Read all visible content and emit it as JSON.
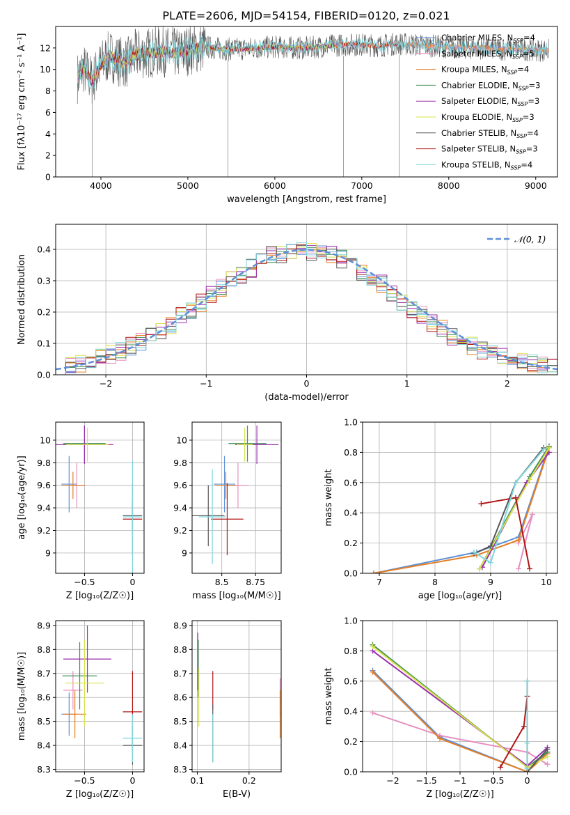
{
  "title": "PLATE=2606, MJD=54154, FIBERID=0120, z=0.021",
  "colors": {
    "chabrier_miles": "#5b8fd6",
    "salpeter_miles": "#e58fbf",
    "kroupa_miles": "#e67e22",
    "chabrier_elodie": "#3f8f55",
    "salpeter_elodie": "#9b2fae",
    "kroupa_elodie": "#d8e04a",
    "chabrier_stelib": "#555555",
    "salpeter_stelib": "#b01515",
    "kroupa_stelib": "#7fd6dd"
  },
  "legend_spectrum": [
    {
      "label": "Chabrier MILES, N",
      "sub": "SSP",
      "value": "=4",
      "color_key": "chabrier_miles"
    },
    {
      "label": "Salpeter MILES, N",
      "sub": "SSP",
      "value": "=5",
      "color_key": "salpeter_miles"
    },
    {
      "label": "Kroupa MILES, N",
      "sub": "SSP",
      "value": "=4",
      "color_key": "kroupa_miles"
    },
    {
      "label": "Chabrier ELODIE, N",
      "sub": "SSP",
      "value": "=3",
      "color_key": "chabrier_elodie"
    },
    {
      "label": "Salpeter ELODIE, N",
      "sub": "SSP",
      "value": "=3",
      "color_key": "salpeter_elodie"
    },
    {
      "label": "Kroupa ELODIE, N",
      "sub": "SSP",
      "value": "=3",
      "color_key": "kroupa_elodie"
    },
    {
      "label": "Chabrier STELIB, N",
      "sub": "SSP",
      "value": "=4",
      "color_key": "chabrier_stelib"
    },
    {
      "label": "Salpeter STELIB, N",
      "sub": "SSP",
      "value": "=3",
      "color_key": "salpeter_stelib"
    },
    {
      "label": "Kroupa STELIB, N",
      "sub": "SSP",
      "value": "=4",
      "color_key": "kroupa_stelib"
    }
  ],
  "chart_data": [
    {
      "id": "spectrum",
      "type": "line",
      "xlabel": "wavelength [Angstrom, rest frame]",
      "ylabel": "Flux [fλ10⁻¹⁷ erg cm⁻² s⁻¹ A⁻¹]",
      "xlim": [
        3480,
        9250
      ],
      "ylim": [
        0,
        14
      ],
      "xticks": [
        4000,
        5000,
        6000,
        7000,
        8000,
        9000
      ],
      "yticks": [
        0,
        2,
        4,
        6,
        8,
        10,
        12
      ],
      "grid": false,
      "legend_position": "top-right",
      "data_points": [
        [
          3730,
          9.2
        ],
        [
          3800,
          10.1
        ],
        [
          3900,
          8.9
        ],
        [
          4000,
          10.4
        ],
        [
          4100,
          11.3
        ],
        [
          4200,
          10.8
        ],
        [
          4300,
          10.6
        ],
        [
          4400,
          11.4
        ],
        [
          4500,
          11.5
        ],
        [
          4600,
          11.6
        ],
        [
          4700,
          11.7
        ],
        [
          4800,
          11.6
        ],
        [
          4900,
          11.5
        ],
        [
          5000,
          11.8
        ],
        [
          5200,
          12.1
        ],
        [
          5400,
          11.9
        ],
        [
          5600,
          11.9
        ],
        [
          5800,
          12.0
        ],
        [
          6000,
          12.1
        ],
        [
          6200,
          12.0
        ],
        [
          6400,
          12.0
        ],
        [
          6600,
          12.2
        ],
        [
          6800,
          12.3
        ],
        [
          7000,
          12.3
        ],
        [
          7200,
          12.2
        ],
        [
          7400,
          12.4
        ],
        [
          7600,
          12.3
        ],
        [
          7800,
          12.2
        ],
        [
          8000,
          12.1
        ],
        [
          8200,
          12.0
        ],
        [
          8400,
          12.0
        ],
        [
          8600,
          11.9
        ],
        [
          8800,
          11.9
        ],
        [
          9000,
          11.8
        ],
        [
          9150,
          11.8
        ]
      ],
      "absorption_drops": [
        [
          3900,
          0
        ],
        [
          5460,
          0
        ],
        [
          6790,
          0
        ],
        [
          7430,
          0
        ]
      ]
    },
    {
      "id": "residuals",
      "type": "line",
      "xlabel": "(data-model)/error",
      "ylabel": "Normed distribution",
      "xlim": [
        -2.5,
        2.5
      ],
      "ylim": [
        0,
        0.48
      ],
      "xticks": [
        -2,
        -1,
        0,
        1,
        2
      ],
      "yticks": [
        0.0,
        0.1,
        0.2,
        0.3,
        0.4
      ],
      "grid": true,
      "legend_position": "top-right",
      "legend": [
        {
          "label": "𝒩(0, 1)",
          "color_key": "chabrier_miles"
        }
      ],
      "bin_edges": [
        -2.5,
        -2.4,
        -2.3,
        -2.2,
        -2.1,
        -2.0,
        -1.9,
        -1.8,
        -1.7,
        -1.6,
        -1.5,
        -1.4,
        -1.3,
        -1.2,
        -1.1,
        -1.0,
        -0.9,
        -0.8,
        -0.7,
        -0.6,
        -0.5,
        -0.4,
        -0.3,
        -0.2,
        -0.1,
        0.0,
        0.1,
        0.2,
        0.3,
        0.4,
        0.5,
        0.6,
        0.7,
        0.8,
        0.9,
        1.0,
        1.1,
        1.2,
        1.3,
        1.4,
        1.5,
        1.6,
        1.7,
        1.8,
        1.9,
        2.0,
        2.1,
        2.2,
        2.3,
        2.4,
        2.5
      ],
      "hist_base": [
        0.025,
        0.032,
        0.038,
        0.045,
        0.055,
        0.065,
        0.075,
        0.09,
        0.105,
        0.12,
        0.14,
        0.16,
        0.185,
        0.205,
        0.23,
        0.255,
        0.28,
        0.3,
        0.32,
        0.34,
        0.36,
        0.38,
        0.385,
        0.395,
        0.4,
        0.395,
        0.39,
        0.38,
        0.37,
        0.35,
        0.33,
        0.31,
        0.29,
        0.26,
        0.235,
        0.21,
        0.19,
        0.165,
        0.145,
        0.12,
        0.105,
        0.09,
        0.075,
        0.065,
        0.055,
        0.048,
        0.042,
        0.036,
        0.032,
        0.028
      ]
    },
    {
      "id": "age_vs_Z",
      "type": "scatter",
      "xlabel": "Z [log₁₀(Z/Z☉)]",
      "ylabel": "age  [log₁₀(age/yr)]",
      "xlim": [
        -0.8,
        0.12
      ],
      "ylim": [
        8.82,
        10.16
      ],
      "xticks": [
        -0.5,
        0.0
      ],
      "yticks": [
        9.0,
        9.2,
        9.4,
        9.6,
        9.8,
        10.0
      ],
      "grid": true,
      "points": [
        {
          "x": -0.66,
          "y": 9.61,
          "ex": 0.08,
          "ey": 0.25,
          "color_key": "chabrier_miles"
        },
        {
          "x": -0.58,
          "y": 9.6,
          "ex": 0.1,
          "ey": 0.2,
          "color_key": "salpeter_miles"
        },
        {
          "x": -0.62,
          "y": 9.6,
          "ex": 0.12,
          "ey": 0.12,
          "color_key": "kroupa_miles"
        },
        {
          "x": -0.5,
          "y": 9.97,
          "ex": 0.22,
          "ey": 0.16,
          "color_key": "chabrier_elodie"
        },
        {
          "x": -0.5,
          "y": 9.96,
          "ex": 0.3,
          "ey": 0.17,
          "color_key": "salpeter_elodie"
        },
        {
          "x": -0.47,
          "y": 9.96,
          "ex": 0.22,
          "ey": 0.15,
          "color_key": "kroupa_elodie"
        },
        {
          "x": 0.0,
          "y": 9.33,
          "ex": 0.1,
          "ey": 0.12,
          "color_key": "chabrier_stelib"
        },
        {
          "x": 0.0,
          "y": 9.3,
          "ex": 0.1,
          "ey": 0.32,
          "color_key": "salpeter_stelib"
        },
        {
          "x": 0.0,
          "y": 9.32,
          "ex": 0.1,
          "ey": 0.5,
          "color_key": "kroupa_stelib"
        }
      ]
    },
    {
      "id": "age_vs_mass",
      "type": "scatter",
      "xlabel": "mass [log₁₀(M/M☉)]",
      "ylabel": "",
      "xlim": [
        8.28,
        8.94
      ],
      "ylim": [
        8.82,
        10.16
      ],
      "xticks": [
        8.5,
        8.75
      ],
      "yticks": [
        9.0,
        9.2,
        9.4,
        9.6,
        9.8,
        10.0
      ],
      "grid": true,
      "points": [
        {
          "x": 8.52,
          "y": 9.61,
          "ex": 0.08,
          "ey": 0.25,
          "color_key": "chabrier_miles"
        },
        {
          "x": 8.62,
          "y": 9.6,
          "ex": 0.08,
          "ey": 0.2,
          "color_key": "salpeter_miles"
        },
        {
          "x": 8.53,
          "y": 9.6,
          "ex": 0.08,
          "ey": 0.12,
          "color_key": "kroupa_miles"
        },
        {
          "x": 8.69,
          "y": 9.97,
          "ex": 0.14,
          "ey": 0.16,
          "color_key": "chabrier_elodie"
        },
        {
          "x": 8.76,
          "y": 9.96,
          "ex": 0.16,
          "ey": 0.17,
          "color_key": "salpeter_elodie"
        },
        {
          "x": 8.67,
          "y": 9.96,
          "ex": 0.06,
          "ey": 0.15,
          "color_key": "kroupa_elodie"
        },
        {
          "x": 8.4,
          "y": 9.33,
          "ex": 0.12,
          "ey": 0.27,
          "color_key": "chabrier_stelib"
        },
        {
          "x": 8.54,
          "y": 9.3,
          "ex": 0.12,
          "ey": 0.32,
          "color_key": "salpeter_stelib"
        },
        {
          "x": 8.43,
          "y": 9.32,
          "ex": 0.1,
          "ey": 0.42,
          "color_key": "kroupa_stelib"
        }
      ]
    },
    {
      "id": "mass_weight_vs_age",
      "type": "line",
      "xlabel": "age  [log₁₀(age/yr)]",
      "ylabel": "mass weight",
      "xlim": [
        6.7,
        10.2
      ],
      "ylim": [
        0,
        1.0
      ],
      "xticks": [
        7,
        8,
        9,
        10
      ],
      "yticks": [
        0.0,
        0.2,
        0.4,
        0.6,
        0.8,
        1.0
      ],
      "grid": true,
      "series": [
        {
          "color_key": "chabrier_miles",
          "x": [
            6.9,
            8.75,
            9.5,
            10.05
          ],
          "y": [
            0.0,
            0.14,
            0.24,
            0.84
          ]
        },
        {
          "color_key": "salpeter_miles",
          "x": [
            9.5,
            9.75,
            9.5
          ],
          "y": [
            0.03,
            0.39,
            0.2
          ]
        },
        {
          "color_key": "kroupa_miles",
          "x": [
            6.9,
            8.75,
            9.5,
            10.05
          ],
          "y": [
            0.0,
            0.12,
            0.22,
            0.83
          ]
        },
        {
          "color_key": "chabrier_elodie",
          "x": [
            8.8,
            9.7,
            10.05
          ],
          "y": [
            0.03,
            0.64,
            0.84
          ]
        },
        {
          "color_key": "salpeter_elodie",
          "x": [
            8.85,
            9.65,
            10.05
          ],
          "y": [
            0.04,
            0.6,
            0.8
          ]
        },
        {
          "color_key": "kroupa_elodie",
          "x": [
            8.8,
            9.7,
            10.05
          ],
          "y": [
            0.03,
            0.62,
            0.83
          ]
        },
        {
          "color_key": "chabrier_stelib",
          "x": [
            8.7,
            9.0,
            9.45,
            9.95
          ],
          "y": [
            0.13,
            0.18,
            0.6,
            0.83
          ]
        },
        {
          "color_key": "salpeter_stelib",
          "x": [
            8.83,
            9.45,
            9.7
          ],
          "y": [
            0.46,
            0.5,
            0.03
          ]
        },
        {
          "color_key": "kroupa_stelib",
          "x": [
            8.7,
            9.0,
            9.45,
            9.95
          ],
          "y": [
            0.14,
            0.07,
            0.6,
            0.82
          ]
        }
      ]
    },
    {
      "id": "mass_vs_Z",
      "type": "scatter",
      "xlabel": "Z [log₁₀(Z/Z☉)]",
      "ylabel": "mass [log₁₀(M/M☉)]",
      "xlim": [
        -0.8,
        0.12
      ],
      "ylim": [
        8.29,
        8.92
      ],
      "xticks": [
        -0.5,
        0.0
      ],
      "yticks": [
        8.3,
        8.4,
        8.5,
        8.6,
        8.7,
        8.8,
        8.9
      ],
      "grid": true,
      "points": [
        {
          "x": -0.66,
          "y": 8.53,
          "ex": 0.08,
          "ey": 0.09,
          "color_key": "chabrier_miles"
        },
        {
          "x": -0.62,
          "y": 8.63,
          "ex": 0.1,
          "ey": 0.08,
          "color_key": "salpeter_miles"
        },
        {
          "x": -0.6,
          "y": 8.53,
          "ex": 0.12,
          "ey": 0.1,
          "color_key": "kroupa_miles"
        },
        {
          "x": -0.55,
          "y": 8.69,
          "ex": 0.18,
          "ey": 0.14,
          "color_key": "chabrier_elodie"
        },
        {
          "x": -0.47,
          "y": 8.76,
          "ex": 0.25,
          "ey": 0.14,
          "color_key": "salpeter_elodie"
        },
        {
          "x": -0.5,
          "y": 8.66,
          "ex": 0.2,
          "ey": 0.18,
          "color_key": "kroupa_elodie"
        },
        {
          "x": 0.0,
          "y": 8.4,
          "ex": 0.1,
          "ey": 0.08,
          "color_key": "chabrier_stelib"
        },
        {
          "x": 0.0,
          "y": 8.54,
          "ex": 0.1,
          "ey": 0.17,
          "color_key": "salpeter_stelib"
        },
        {
          "x": 0.0,
          "y": 8.43,
          "ex": 0.1,
          "ey": 0.1,
          "color_key": "kroupa_stelib"
        }
      ]
    },
    {
      "id": "mass_vs_ebv",
      "type": "scatter",
      "xlabel": "E(B-V)",
      "ylabel": "",
      "xlim": [
        0.09,
        0.262
      ],
      "ylim": [
        8.29,
        8.92
      ],
      "xticks": [
        0.1,
        0.2
      ],
      "yticks": [
        8.3,
        8.4,
        8.5,
        8.6,
        8.7,
        8.8,
        8.9
      ],
      "grid": true,
      "points": [
        {
          "x": 0.101,
          "y": 8.75,
          "ey": 0.12,
          "color_key": "salpeter_elodie"
        },
        {
          "x": 0.102,
          "y": 8.72,
          "ey": 0.12,
          "color_key": "chabrier_elodie"
        },
        {
          "x": 0.103,
          "y": 8.6,
          "ey": 0.12,
          "color_key": "kroupa_elodie"
        },
        {
          "x": 0.13,
          "y": 8.63,
          "ey": 0.08,
          "color_key": "salpeter_stelib"
        },
        {
          "x": 0.13,
          "y": 8.45,
          "ey": 0.12,
          "color_key": "chabrier_stelib"
        },
        {
          "x": 0.13,
          "y": 8.43,
          "ey": 0.1,
          "color_key": "kroupa_stelib"
        },
        {
          "x": 0.26,
          "y": 8.6,
          "ey": 0.08,
          "color_key": "salpeter_miles"
        },
        {
          "x": 0.26,
          "y": 8.53,
          "ey": 0.1,
          "color_key": "kroupa_miles"
        }
      ]
    },
    {
      "id": "mass_weight_vs_Z",
      "type": "line",
      "xlabel": "Z [log₁₀(Z/Z☉)]",
      "ylabel": "mass weight",
      "xlim": [
        -2.45,
        0.45
      ],
      "ylim": [
        0,
        1.0
      ],
      "xticks": [
        -2.0,
        -1.5,
        -1.0,
        -0.5,
        0.0
      ],
      "yticks": [
        0.0,
        0.2,
        0.4,
        0.6,
        0.8,
        1.0
      ],
      "grid": true,
      "series": [
        {
          "color_key": "chabrier_miles",
          "x": [
            -2.3,
            -1.3,
            0.0,
            0.3
          ],
          "y": [
            0.67,
            0.23,
            0.0,
            0.13
          ]
        },
        {
          "color_key": "salpeter_miles",
          "x": [
            -2.3,
            -1.3,
            0.0,
            0.3
          ],
          "y": [
            0.39,
            0.24,
            0.13,
            0.05
          ]
        },
        {
          "color_key": "kroupa_miles",
          "x": [
            -2.3,
            -1.3,
            0.0,
            0.3
          ],
          "y": [
            0.66,
            0.22,
            0.0,
            0.12
          ]
        },
        {
          "color_key": "chabrier_elodie",
          "x": [
            -2.3,
            0.0,
            0.3
          ],
          "y": [
            0.84,
            0.03,
            0.13
          ]
        },
        {
          "color_key": "salpeter_elodie",
          "x": [
            -2.3,
            0.0,
            0.3
          ],
          "y": [
            0.8,
            0.04,
            0.16
          ]
        },
        {
          "color_key": "kroupa_elodie",
          "x": [
            -2.3,
            0.0,
            0.3
          ],
          "y": [
            0.83,
            0.03,
            0.1
          ]
        },
        {
          "color_key": "chabrier_stelib",
          "x": [
            0.0,
            0.0,
            0.3
          ],
          "y": [
            0.6,
            0.0,
            0.15
          ]
        },
        {
          "color_key": "salpeter_stelib",
          "x": [
            -0.4,
            -0.05,
            0.0
          ],
          "y": [
            0.03,
            0.3,
            0.5
          ]
        },
        {
          "color_key": "kroupa_stelib",
          "x": [
            0.0,
            0.0,
            0.0
          ],
          "y": [
            0.6,
            0.19,
            0.02
          ]
        }
      ]
    }
  ]
}
